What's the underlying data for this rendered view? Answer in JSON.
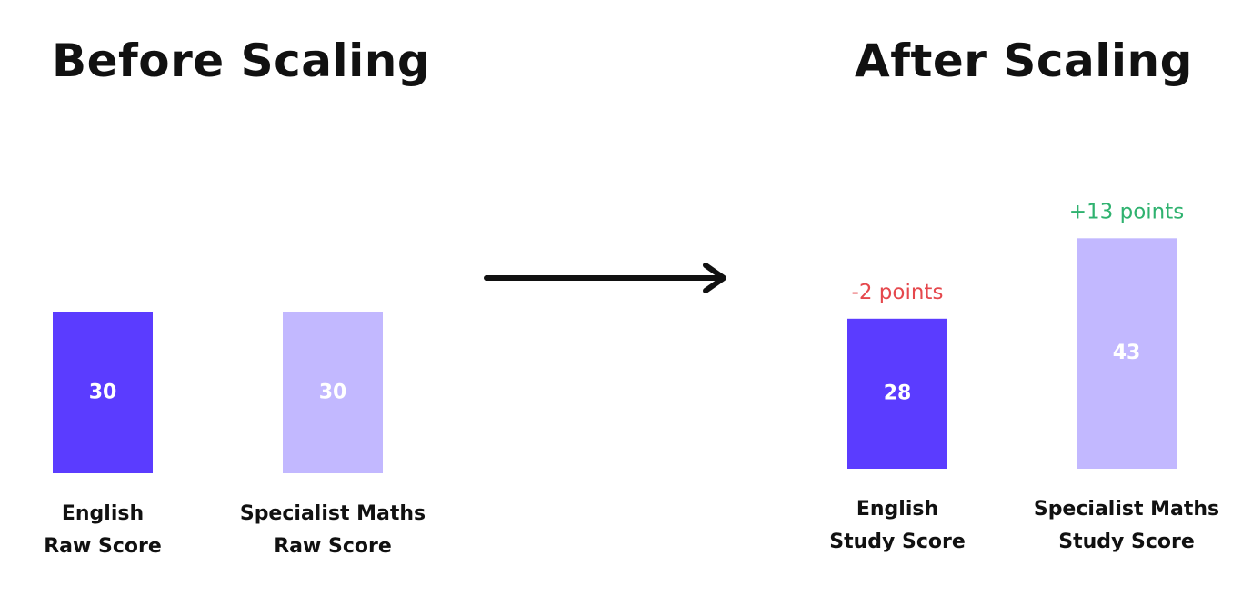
{
  "colors": {
    "english": "#5b3cff",
    "specialist": "#c2b8ff",
    "positive": "#2fb26f",
    "negative": "#e5484d"
  },
  "icons": {
    "arrow": "right-arrow-icon"
  },
  "chart_data": [
    {
      "type": "bar",
      "title": "Before Scaling",
      "ylim": [
        0,
        50
      ],
      "bars": [
        {
          "label_lines": [
            "English",
            "Raw Score"
          ],
          "value": 30,
          "value_label": "30",
          "color_key": "english"
        },
        {
          "label_lines": [
            "Specialist Maths",
            "Raw Score"
          ],
          "value": 30,
          "value_label": "30",
          "color_key": "specialist"
        }
      ]
    },
    {
      "type": "bar",
      "title": "After Scaling",
      "ylim": [
        0,
        50
      ],
      "bars": [
        {
          "label_lines": [
            "English",
            "Study Score"
          ],
          "value": 28,
          "value_label": "28",
          "color_key": "english",
          "change_label": "-2 points",
          "change_color_key": "negative"
        },
        {
          "label_lines": [
            "Specialist Maths",
            "Study Score"
          ],
          "value": 43,
          "value_label": "43",
          "color_key": "specialist",
          "change_label": "+13 points",
          "change_color_key": "positive"
        }
      ]
    }
  ]
}
